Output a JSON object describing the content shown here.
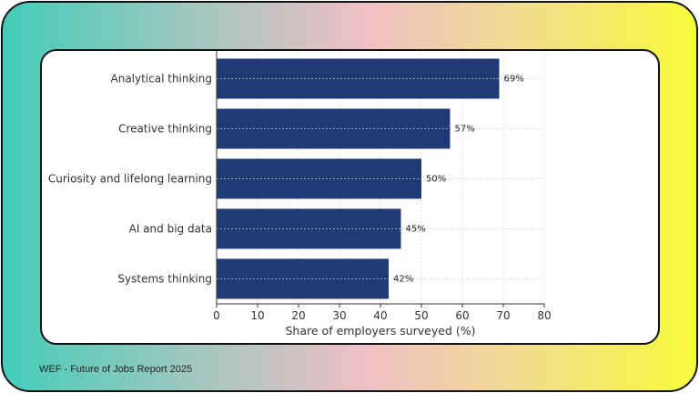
{
  "chart_data": {
    "type": "bar",
    "orientation": "horizontal",
    "categories": [
      "Analytical thinking",
      "Creative thinking",
      "Curiosity and lifelong learning",
      "AI and big data",
      "Systems thinking"
    ],
    "values": [
      69,
      57,
      50,
      45,
      42
    ],
    "data_labels": [
      "69%",
      "57%",
      "50%",
      "45%",
      "42%"
    ],
    "xlabel": "Share of employers surveyed (%)",
    "ylabel": "",
    "xlim": [
      0,
      80
    ],
    "xticks": [
      "0",
      "10",
      "20",
      "30",
      "40",
      "50",
      "60",
      "70",
      "80"
    ],
    "grid": true,
    "bar_color": "#1f3a75"
  },
  "footer": {
    "source": "WEF - Future of Jobs Report 2025"
  }
}
